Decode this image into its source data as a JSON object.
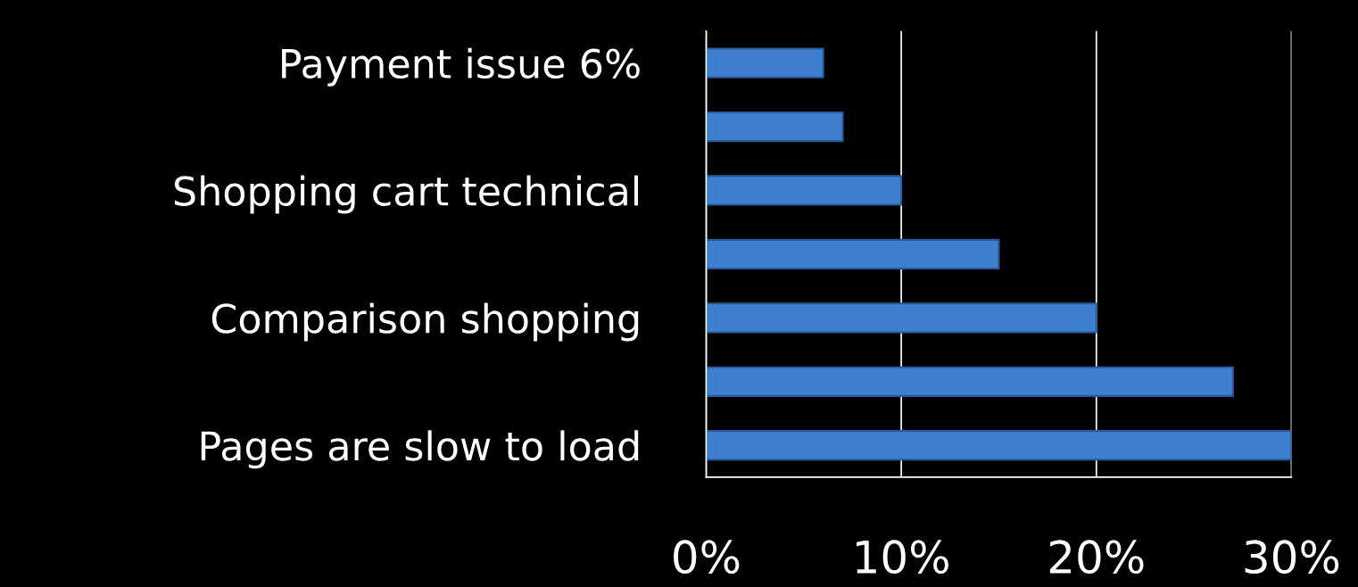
{
  "chart_data": {
    "type": "bar",
    "orientation": "horizontal",
    "categories": [
      "Payment issue 6%",
      null,
      "Shopping cart technical",
      null,
      "Comparison shopping",
      null,
      "Pages are slow to load"
    ],
    "values": [
      6,
      7,
      10,
      15,
      20,
      27,
      30
    ],
    "color": "#3f7fcf",
    "xlim": [
      0,
      30
    ],
    "xticks": [
      {
        "value": 0,
        "label": "0%"
      },
      {
        "value": 10,
        "label": "10%"
      },
      {
        "value": 20,
        "label": "20%"
      },
      {
        "value": 30,
        "label": "30%"
      }
    ],
    "grid": "x",
    "legend": false
  }
}
